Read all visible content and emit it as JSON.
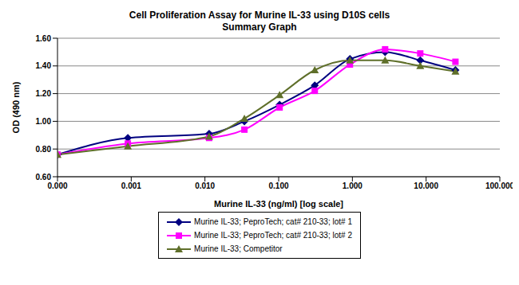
{
  "chart_data": {
    "type": "line",
    "title": "Cell Proliferation Assay for Murine IL-33 using D10S cells",
    "subtitle": "Summary Graph",
    "x_label": "Murine IL-33 (ng/ml) [log scale]",
    "y_label": "OD (490 nm)",
    "x": [
      0.0001,
      0.0009,
      0.0114,
      0.0343,
      0.103,
      0.309,
      0.926,
      2.78,
      8.33,
      25
    ],
    "series": [
      {
        "name": "Murine IL-33; PeproTech; cat# 210-33; lot# 1",
        "color": "#000080",
        "marker": "diamond",
        "values": [
          0.76,
          0.88,
          0.91,
          1.0,
          1.12,
          1.26,
          1.45,
          1.5,
          1.44,
          1.37
        ]
      },
      {
        "name": "Murine IL-33; PeproTech; cat# 210-33; lot# 2",
        "color": "#ff00ff",
        "marker": "square",
        "values": [
          0.76,
          0.84,
          0.88,
          0.94,
          1.1,
          1.22,
          1.41,
          1.52,
          1.49,
          1.43
        ]
      },
      {
        "name": "Murine IL-33; Competitor",
        "color": "#5f6f2a",
        "marker": "triangle",
        "values": [
          0.76,
          0.82,
          0.89,
          1.02,
          1.19,
          1.37,
          1.44,
          1.44,
          1.4,
          1.36
        ]
      }
    ],
    "xlim": [
      0.0001,
      100
    ],
    "xticks": [
      {
        "value": 0.0001,
        "label": "0.000"
      },
      {
        "value": 0.001,
        "label": "0.001"
      },
      {
        "value": 0.01,
        "label": "0.010"
      },
      {
        "value": 0.1,
        "label": "0.100"
      },
      {
        "value": 1,
        "label": "1.000"
      },
      {
        "value": 10,
        "label": "10.000"
      },
      {
        "value": 100,
        "label": "100.000"
      }
    ],
    "ylim": [
      0.6,
      1.6
    ],
    "yticks": [
      {
        "value": 0.6,
        "label": "0.60"
      },
      {
        "value": 0.8,
        "label": "0.80"
      },
      {
        "value": 1.0,
        "label": "1.00"
      },
      {
        "value": 1.2,
        "label": "1.20"
      },
      {
        "value": 1.4,
        "label": "1.40"
      },
      {
        "value": 1.6,
        "label": "1.60"
      }
    ],
    "log": "x",
    "grid": true,
    "legend": "bottom"
  }
}
